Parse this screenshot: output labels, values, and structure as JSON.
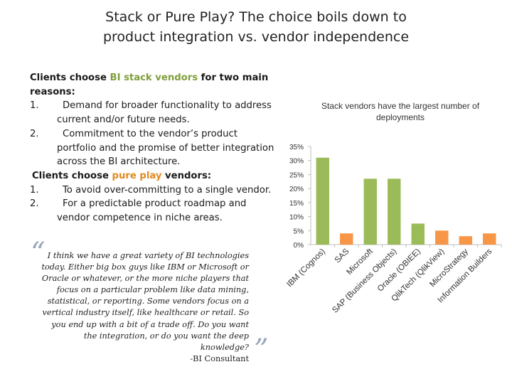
{
  "title": {
    "line1": "Stack or Pure Play?  The choice boils down to",
    "line2": "product integration vs. vendor independence"
  },
  "reasons": {
    "intro_pre": "Clients choose ",
    "intro_highlight": "BI stack vendors",
    "intro_post": " for two main",
    "intro_line2": "reasons:",
    "stack_items": [
      {
        "num": "1.",
        "line1": "Demand for broader functionality to address",
        "line2": "current and/or future needs."
      },
      {
        "num": "2.",
        "line1": "Commitment to the vendor’s product",
        "line2": "portfolio and the promise of better integration",
        "line3": "across the BI architecture."
      }
    ],
    "pure_pre": "Clients choose ",
    "pure_highlight": "pure play",
    "pure_post": " vendors:",
    "pure_items": [
      {
        "num": "1.",
        "line1": "To avoid over-committing to a single vendor."
      },
      {
        "num": "2.",
        "line1": "For a predictable product roadmap and",
        "line2": "vendor competence in niche areas."
      }
    ]
  },
  "quote": {
    "open_mark": "“",
    "close_mark": "”",
    "lines": [
      "I think we have a great variety  of BI technologies",
      "today. Either big box guys like IBM or Microsoft or",
      "Oracle or whatever, or the more niche players that",
      "focus on a particular problem like data mining,",
      "statistical, or reporting. Some vendors focus on a",
      "vertical industry itself, like healthcare or retail. So",
      "you end up with a bit of a trade off. Do you want",
      "the integration, or do you want the deep",
      "knowledge?"
    ],
    "attribution": "-BI Consultant"
  },
  "colors": {
    "stack": "#9bbb59",
    "pure": "#f79646",
    "axis": "#bfbfbf"
  },
  "chart_data": {
    "type": "bar",
    "title": "Stack vendors have the largest number of deployments",
    "title_lines": [
      "Stack vendors have the largest number of",
      "deployments"
    ],
    "categories": [
      "IBM (Cognos)",
      "SAS",
      "Microsoft",
      "SAP (Business Objects)",
      "Oracle (OBIEE)",
      "QlikTech (QlikView)",
      "MicroStrategy",
      "Information Builders"
    ],
    "values": [
      31,
      4,
      23.5,
      23.5,
      7.5,
      5,
      3,
      4
    ],
    "vendor_type": [
      "stack",
      "pure",
      "stack",
      "stack",
      "stack",
      "pure",
      "pure",
      "pure"
    ],
    "ylim": [
      0,
      35
    ],
    "yticks": [
      0,
      5,
      10,
      15,
      20,
      25,
      30,
      35
    ],
    "ytick_labels": [
      "0%",
      "5%",
      "10%",
      "15%",
      "20%",
      "25%",
      "30%",
      "35%"
    ],
    "xlabel": "",
    "ylabel": "",
    "grid": false
  }
}
